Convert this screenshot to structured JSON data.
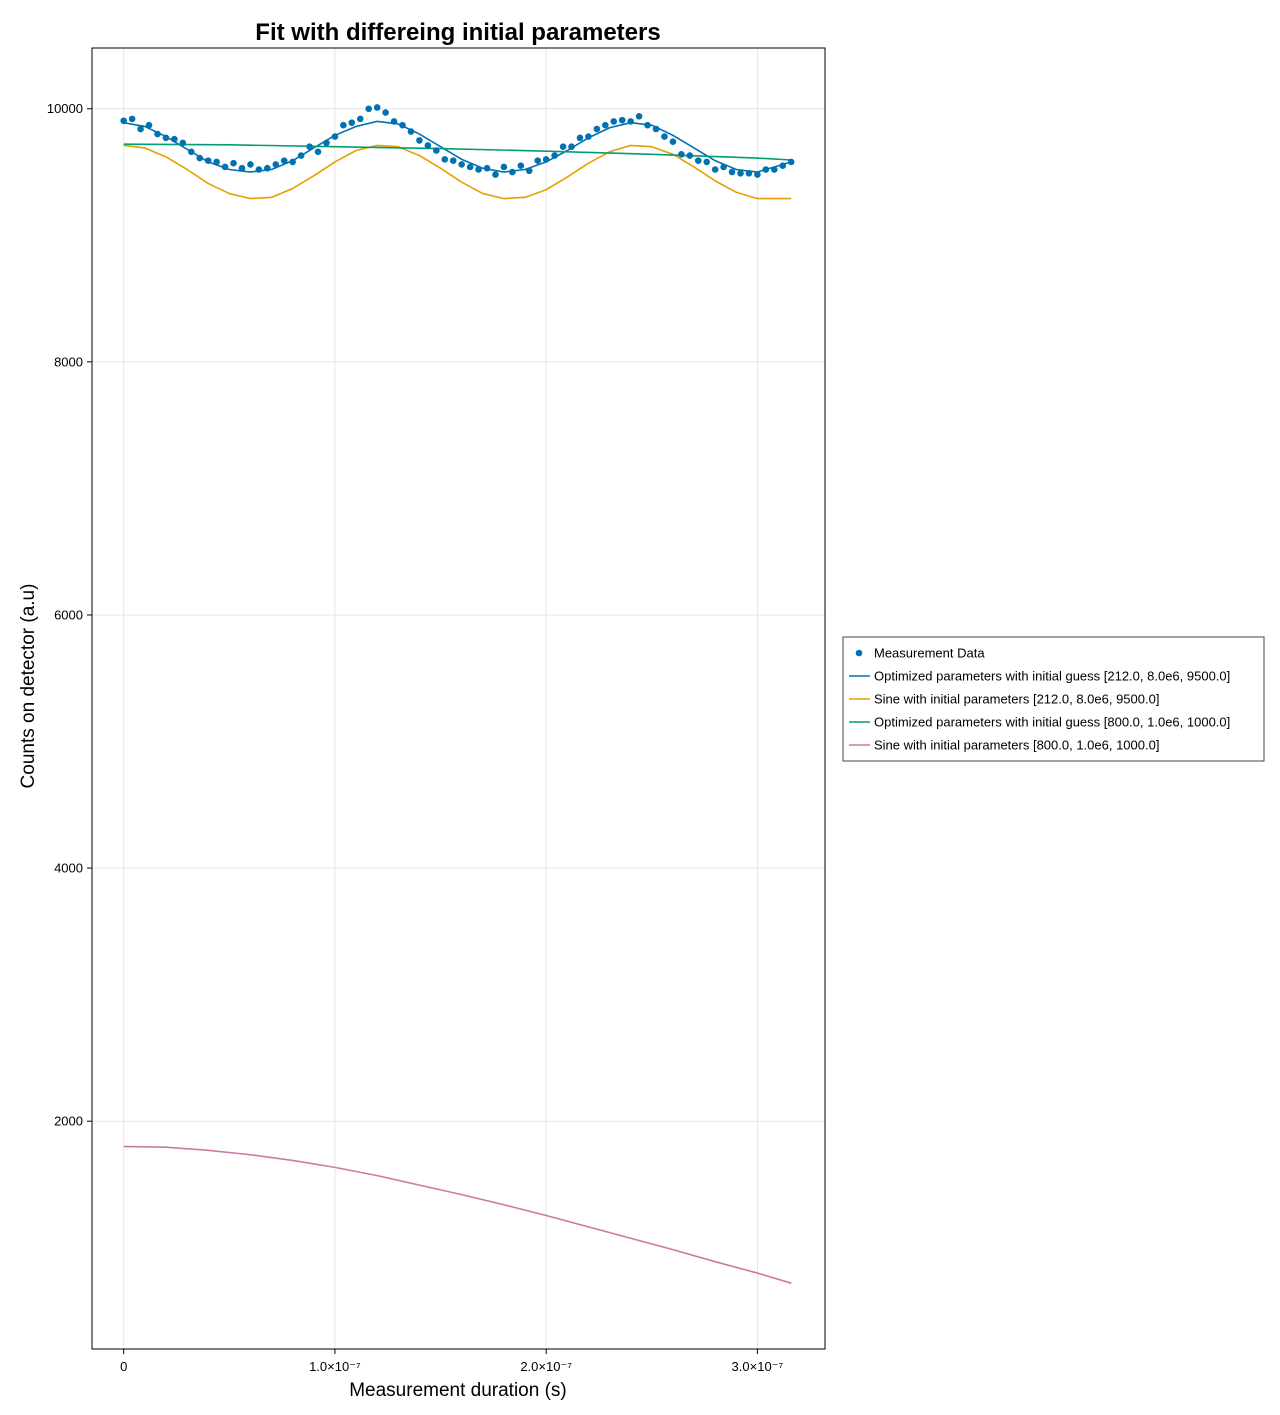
{
  "chart_data": {
    "type": "line",
    "title": "Fit with differeing initial parameters",
    "xlabel": "Measurement duration (s)",
    "ylabel": "Counts on detector (a.u)",
    "xlim": [
      -1.5e-08,
      3.32e-07
    ],
    "ylim": [
      200,
      10480
    ],
    "x_ticks": [
      {
        "value": 0,
        "label": "0"
      },
      {
        "value": 1e-07,
        "label": "1.0×10⁻⁷"
      },
      {
        "value": 2e-07,
        "label": "2.0×10⁻⁷"
      },
      {
        "value": 3e-07,
        "label": "3.0×10⁻⁷"
      }
    ],
    "y_ticks": [
      {
        "value": 2000,
        "label": "2000"
      },
      {
        "value": 4000,
        "label": "4000"
      },
      {
        "value": 6000,
        "label": "6000"
      },
      {
        "value": 8000,
        "label": "8000"
      },
      {
        "value": 10000,
        "label": "10000"
      }
    ],
    "grid": true,
    "legend_position": "right",
    "series": [
      {
        "name": "Measurement Data",
        "kind": "scatter",
        "color": "#0072b2",
        "x": [
          0,
          4e-09,
          8e-09,
          1.2e-08,
          1.6e-08,
          2e-08,
          2.4e-08,
          2.8e-08,
          3.2e-08,
          3.6e-08,
          4e-08,
          4.4e-08,
          4.8e-08,
          5.2e-08,
          5.6e-08,
          6e-08,
          6.4e-08,
          6.8e-08,
          7.2e-08,
          7.6e-08,
          8e-08,
          8.4e-08,
          8.8e-08,
          9.2e-08,
          9.6e-08,
          1e-07,
          1.04e-07,
          1.08e-07,
          1.12e-07,
          1.16e-07,
          1.2e-07,
          1.24e-07,
          1.28e-07,
          1.32e-07,
          1.36e-07,
          1.4e-07,
          1.44e-07,
          1.48e-07,
          1.52e-07,
          1.56e-07,
          1.6e-07,
          1.64e-07,
          1.68e-07,
          1.72e-07,
          1.76e-07,
          1.8e-07,
          1.84e-07,
          1.88e-07,
          1.92e-07,
          1.96e-07,
          2e-07,
          2.04e-07,
          2.08e-07,
          2.12e-07,
          2.16e-07,
          2.2e-07,
          2.24e-07,
          2.28e-07,
          2.32e-07,
          2.36e-07,
          2.4e-07,
          2.44e-07,
          2.48e-07,
          2.52e-07,
          2.56e-07,
          2.6e-07,
          2.64e-07,
          2.68e-07,
          2.72e-07,
          2.76e-07,
          2.8e-07,
          2.84e-07,
          2.88e-07,
          2.92e-07,
          2.96e-07,
          3e-07,
          3.04e-07,
          3.08e-07,
          3.12e-07,
          3.16e-07
        ],
        "y": [
          9905,
          9920,
          9840,
          9870,
          9800,
          9770,
          9760,
          9730,
          9660,
          9610,
          9590,
          9580,
          9540,
          9570,
          9530,
          9560,
          9520,
          9530,
          9560,
          9590,
          9580,
          9630,
          9700,
          9660,
          9730,
          9780,
          9870,
          9890,
          9920,
          10000,
          10010,
          9970,
          9900,
          9870,
          9820,
          9750,
          9710,
          9670,
          9600,
          9590,
          9560,
          9540,
          9520,
          9530,
          9480,
          9540,
          9500,
          9550,
          9510,
          9590,
          9600,
          9630,
          9700,
          9700,
          9770,
          9780,
          9840,
          9870,
          9900,
          9910,
          9900,
          9940,
          9870,
          9840,
          9780,
          9740,
          9640,
          9630,
          9590,
          9580,
          9520,
          9540,
          9500,
          9490,
          9490,
          9480,
          9520,
          9520,
          9550,
          9580
        ]
      },
      {
        "name": "Optimized parameters with initial guess [212.0, 8.0e6, 9500.0]",
        "kind": "line",
        "color": "#0072b2",
        "x": [
          0,
          1e-08,
          2e-08,
          3e-08,
          4e-08,
          5e-08,
          6e-08,
          7e-08,
          8e-08,
          9e-08,
          1e-07,
          1.1e-07,
          1.2e-07,
          1.3e-07,
          1.4e-07,
          1.5e-07,
          1.6e-07,
          1.7e-07,
          1.8e-07,
          1.9e-07,
          2e-07,
          2.1e-07,
          2.2e-07,
          2.3e-07,
          2.4e-07,
          2.5e-07,
          2.6e-07,
          2.7e-07,
          2.8e-07,
          2.9e-07,
          3e-07,
          3.16e-07
        ],
        "y": [
          9890,
          9860,
          9780,
          9680,
          9580,
          9520,
          9500,
          9520,
          9590,
          9690,
          9790,
          9860,
          9900,
          9880,
          9800,
          9700,
          9600,
          9530,
          9500,
          9520,
          9580,
          9670,
          9770,
          9850,
          9890,
          9870,
          9790,
          9690,
          9590,
          9520,
          9500,
          9580
        ]
      },
      {
        "name": "Sine with initial parameters [212.0, 8.0e6, 9500.0]",
        "kind": "line",
        "color": "#e69f00",
        "x": [
          0,
          1e-08,
          2e-08,
          3e-08,
          4e-08,
          5e-08,
          6e-08,
          7e-08,
          8e-08,
          9e-08,
          1e-07,
          1.1e-07,
          1.2e-07,
          1.3e-07,
          1.4e-07,
          1.5e-07,
          1.6e-07,
          1.7e-07,
          1.8e-07,
          1.9e-07,
          2e-07,
          2.1e-07,
          2.2e-07,
          2.3e-07,
          2.4e-07,
          2.5e-07,
          2.6e-07,
          2.7e-07,
          2.8e-07,
          2.9e-07,
          3e-07,
          3.16e-07
        ],
        "y": [
          9710,
          9690,
          9620,
          9520,
          9410,
          9330,
          9290,
          9300,
          9370,
          9470,
          9580,
          9670,
          9710,
          9700,
          9630,
          9530,
          9420,
          9330,
          9290,
          9300,
          9360,
          9460,
          9570,
          9660,
          9710,
          9700,
          9640,
          9540,
          9430,
          9340,
          9290,
          9290
        ]
      },
      {
        "name": "Optimized parameters with initial guess [800.0, 1.0e6, 1000.0]",
        "kind": "line",
        "color": "#009e73",
        "x": [
          0,
          5e-08,
          1e-07,
          1.5e-07,
          2e-07,
          2.5e-07,
          3e-07,
          3.16e-07
        ],
        "y": [
          9720,
          9715,
          9700,
          9685,
          9665,
          9640,
          9610,
          9595
        ]
      },
      {
        "name": "Sine with initial parameters [800.0, 1.0e6, 1000.0]",
        "kind": "line",
        "color": "#cc79a7",
        "x": [
          0,
          2e-08,
          4e-08,
          6e-08,
          8e-08,
          1e-07,
          1.2e-07,
          1.4e-07,
          1.6e-07,
          1.8e-07,
          2e-07,
          2.2e-07,
          2.4e-07,
          2.6e-07,
          2.8e-07,
          3e-07,
          3.16e-07
        ],
        "y": [
          1800,
          1795,
          1770,
          1735,
          1690,
          1635,
          1570,
          1495,
          1420,
          1340,
          1255,
          1165,
          1075,
          985,
          890,
          800,
          720
        ]
      }
    ]
  }
}
